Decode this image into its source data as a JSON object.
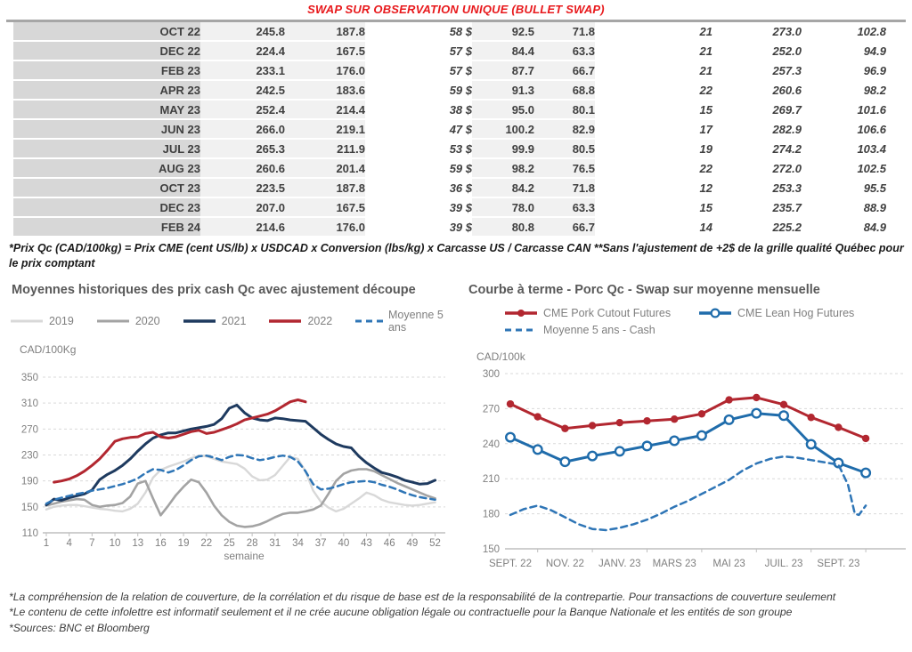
{
  "title": "SWAP SUR OBSERVATION UNIQUE (BULLET SWAP)",
  "table": {
    "rows": [
      [
        "OCT 22",
        "245.8",
        "187.8",
        "58 $",
        "92.5",
        "71.8",
        "21",
        "273.0",
        "102.8"
      ],
      [
        "DEC 22",
        "224.4",
        "167.5",
        "57 $",
        "84.4",
        "63.3",
        "21",
        "252.0",
        "94.9"
      ],
      [
        "FEB 23",
        "233.1",
        "176.0",
        "57 $",
        "87.7",
        "66.7",
        "21",
        "257.3",
        "96.9"
      ],
      [
        "APR 23",
        "242.5",
        "183.6",
        "59 $",
        "91.3",
        "68.8",
        "22",
        "260.6",
        "98.2"
      ],
      [
        "MAY 23",
        "252.4",
        "214.4",
        "38 $",
        "95.0",
        "80.1",
        "15",
        "269.7",
        "101.6"
      ],
      [
        "JUN 23",
        "266.0",
        "219.1",
        "47 $",
        "100.2",
        "82.9",
        "17",
        "282.9",
        "106.6"
      ],
      [
        "JUL 23",
        "265.3",
        "211.9",
        "53 $",
        "99.9",
        "80.5",
        "19",
        "274.2",
        "103.4"
      ],
      [
        "AUG 23",
        "260.6",
        "201.4",
        "59 $",
        "98.2",
        "76.5",
        "22",
        "272.0",
        "102.5"
      ],
      [
        "OCT 23",
        "223.5",
        "187.8",
        "36 $",
        "84.2",
        "71.8",
        "12",
        "253.3",
        "95.5"
      ],
      [
        "DEC 23",
        "207.0",
        "167.5",
        "39 $",
        "78.0",
        "63.3",
        "15",
        "235.7",
        "88.9"
      ],
      [
        "FEB 24",
        "214.6",
        "176.0",
        "39 $",
        "80.8",
        "66.7",
        "14",
        "225.2",
        "84.9"
      ]
    ],
    "footnote": "*Prix Qc (CAD/100kg) = Prix CME (cent US/lb) x USDCAD x Conversion (lbs/kg) x Carcasse US / Carcasse CAN **Sans l'ajustement de +2$ de la grille qualité Québec pour le prix comptant"
  },
  "chart_data": [
    {
      "id": "left",
      "type": "line",
      "title": "Moyennes historiques des prix cash Qc avec ajustement découpe",
      "unit_label": "CAD/100Kg",
      "xlabel": "semaine",
      "ylim": [
        110,
        350
      ],
      "yticks": [
        110,
        150,
        190,
        230,
        270,
        310,
        350
      ],
      "xlim": [
        1,
        52
      ],
      "xticks": [
        1,
        4,
        7,
        10,
        13,
        16,
        19,
        22,
        25,
        28,
        31,
        34,
        37,
        40,
        43,
        46,
        49,
        52
      ],
      "grid": "horizontal-dashed",
      "legend_position": "top",
      "series": [
        {
          "name": "2019",
          "color": "#d8d8d8",
          "width": 2.4,
          "x_start": 1,
          "values": [
            146,
            150,
            152,
            153,
            153,
            151,
            149,
            147,
            146,
            144,
            143,
            147,
            155,
            172,
            195,
            207,
            212,
            216,
            220,
            225,
            229,
            228,
            224,
            220,
            218,
            216,
            209,
            197,
            191,
            192,
            199,
            213,
            227,
            224,
            205,
            175,
            158,
            149,
            143,
            147,
            155,
            163,
            172,
            168,
            161,
            157,
            155,
            153,
            152,
            153,
            155,
            157
          ]
        },
        {
          "name": "2020",
          "color": "#a3a3a3",
          "width": 2.6,
          "x_start": 1,
          "values": [
            152,
            155,
            158,
            160,
            162,
            161,
            153,
            150,
            152,
            153,
            156,
            166,
            186,
            190,
            163,
            137,
            152,
            168,
            181,
            192,
            188,
            172,
            152,
            137,
            127,
            121,
            119,
            120,
            123,
            128,
            134,
            139,
            141,
            141,
            143,
            146,
            152,
            170,
            190,
            201,
            206,
            208,
            208,
            205,
            199,
            193,
            187,
            182,
            177,
            172,
            167,
            163
          ]
        },
        {
          "name": "2021",
          "color": "#1e3a5f",
          "width": 3,
          "x_start": 1,
          "values": [
            153,
            162,
            160,
            164,
            167,
            170,
            176,
            192,
            200,
            206,
            214,
            224,
            236,
            247,
            256,
            261,
            264,
            264,
            267,
            270,
            272,
            274,
            277,
            286,
            302,
            307,
            295,
            287,
            284,
            283,
            287,
            286,
            284,
            283,
            282,
            272,
            262,
            254,
            247,
            243,
            241,
            228,
            218,
            210,
            203,
            200,
            196,
            191,
            188,
            185,
            186,
            191
          ]
        },
        {
          "name": "2022",
          "color": "#b22730",
          "width": 3,
          "x_start": 2,
          "values": [
            188,
            190,
            193,
            198,
            205,
            214,
            224,
            237,
            251,
            255,
            257,
            258,
            263,
            265,
            258,
            256,
            258,
            262,
            266,
            268,
            263,
            265,
            269,
            273,
            278,
            284,
            287,
            290,
            293,
            298,
            305,
            312,
            315,
            312
          ]
        },
        {
          "name": "Moyenne 5 ans",
          "color": "#2e75b6",
          "width": 2.5,
          "dash": "7 5",
          "x_start": 1,
          "values": [
            155,
            161,
            164,
            167,
            170,
            172,
            175,
            177,
            179,
            182,
            185,
            189,
            194,
            202,
            208,
            207,
            203,
            207,
            214,
            222,
            228,
            229,
            226,
            222,
            227,
            230,
            229,
            225,
            222,
            224,
            227,
            229,
            227,
            220,
            205,
            185,
            177,
            178,
            181,
            185,
            188,
            189,
            190,
            188,
            184,
            181,
            177,
            172,
            168,
            165,
            163,
            161
          ]
        }
      ]
    },
    {
      "id": "right",
      "type": "line",
      "title": "Courbe à terme - Porc Qc - Swap sur moyenne mensuelle",
      "unit_label": "CAD/100k",
      "ylim": [
        150,
        300
      ],
      "yticks": [
        150,
        180,
        210,
        240,
        270,
        300
      ],
      "x_categories": [
        "SEPT. 22",
        "OCT. 22",
        "NOV. 22",
        "DÉC. 22",
        "JANV. 23",
        "FÉVR. 23",
        "MARS 23",
        "AVR. 23",
        "MAI 23",
        "JUIN 23",
        "JUIL. 23",
        "AOÛT 23",
        "SEPT. 23",
        "OCT. 23"
      ],
      "xtick_labels": [
        "SEPT. 22",
        "NOV. 22",
        "JANV. 23",
        "MARS 23",
        "MAI 23",
        "JUIL. 23",
        "SEPT. 23"
      ],
      "grid": "horizontal-dashed",
      "legend_position": "top",
      "series": [
        {
          "name": "CME Pork Cutout Futures",
          "color": "#b22730",
          "width": 3,
          "marker": "filled",
          "values": [
            274,
            263,
            253,
            255.5,
            258,
            259.5,
            261,
            265.5,
            277.5,
            279.5,
            273.5,
            262.5,
            254,
            244.5
          ]
        },
        {
          "name": "CME Lean Hog Futures",
          "color": "#1f6cab",
          "width": 3,
          "marker": "open",
          "values": [
            245.5,
            235,
            224.5,
            229.5,
            233.5,
            238,
            242.5,
            247,
            260.5,
            266,
            264,
            239.5,
            223.5,
            215
          ]
        },
        {
          "name": "Moyenne 5 ans - Cash",
          "color": "#2e75b6",
          "width": 2.5,
          "dash": "7 5",
          "pairs": [
            [
              0,
              179
            ],
            [
              0.5,
              184
            ],
            [
              1,
              187
            ],
            [
              1.5,
              183
            ],
            [
              2,
              177
            ],
            [
              2.5,
              171
            ],
            [
              3,
              167
            ],
            [
              3.5,
              166
            ],
            [
              4,
              168
            ],
            [
              4.5,
              171
            ],
            [
              5,
              175
            ],
            [
              5.5,
              180
            ],
            [
              6,
              186
            ],
            [
              6.5,
              191
            ],
            [
              7,
              197
            ],
            [
              7.5,
              203
            ],
            [
              8,
              209
            ],
            [
              8.5,
              217
            ],
            [
              9,
              223
            ],
            [
              9.5,
              227
            ],
            [
              10,
              229
            ],
            [
              10.5,
              228
            ],
            [
              11,
              226
            ],
            [
              11.5,
              224
            ],
            [
              12,
              222
            ],
            [
              12.35,
              205
            ],
            [
              12.6,
              180
            ],
            [
              12.75,
              179
            ],
            [
              13,
              187
            ]
          ]
        }
      ]
    }
  ],
  "notes": [
    "*La compréhension de la relation de couverture, de la corrélation et du risque de base est de la responsabilité de la contrepartie. Pour transactions de couverture seulement",
    "*Le contenu de cette infolettre est informatif seulement et il ne crée aucune obligation légale ou contractuelle pour la Banque Nationale et les entités de son groupe",
    "*Sources: BNC et Bloomberg"
  ]
}
